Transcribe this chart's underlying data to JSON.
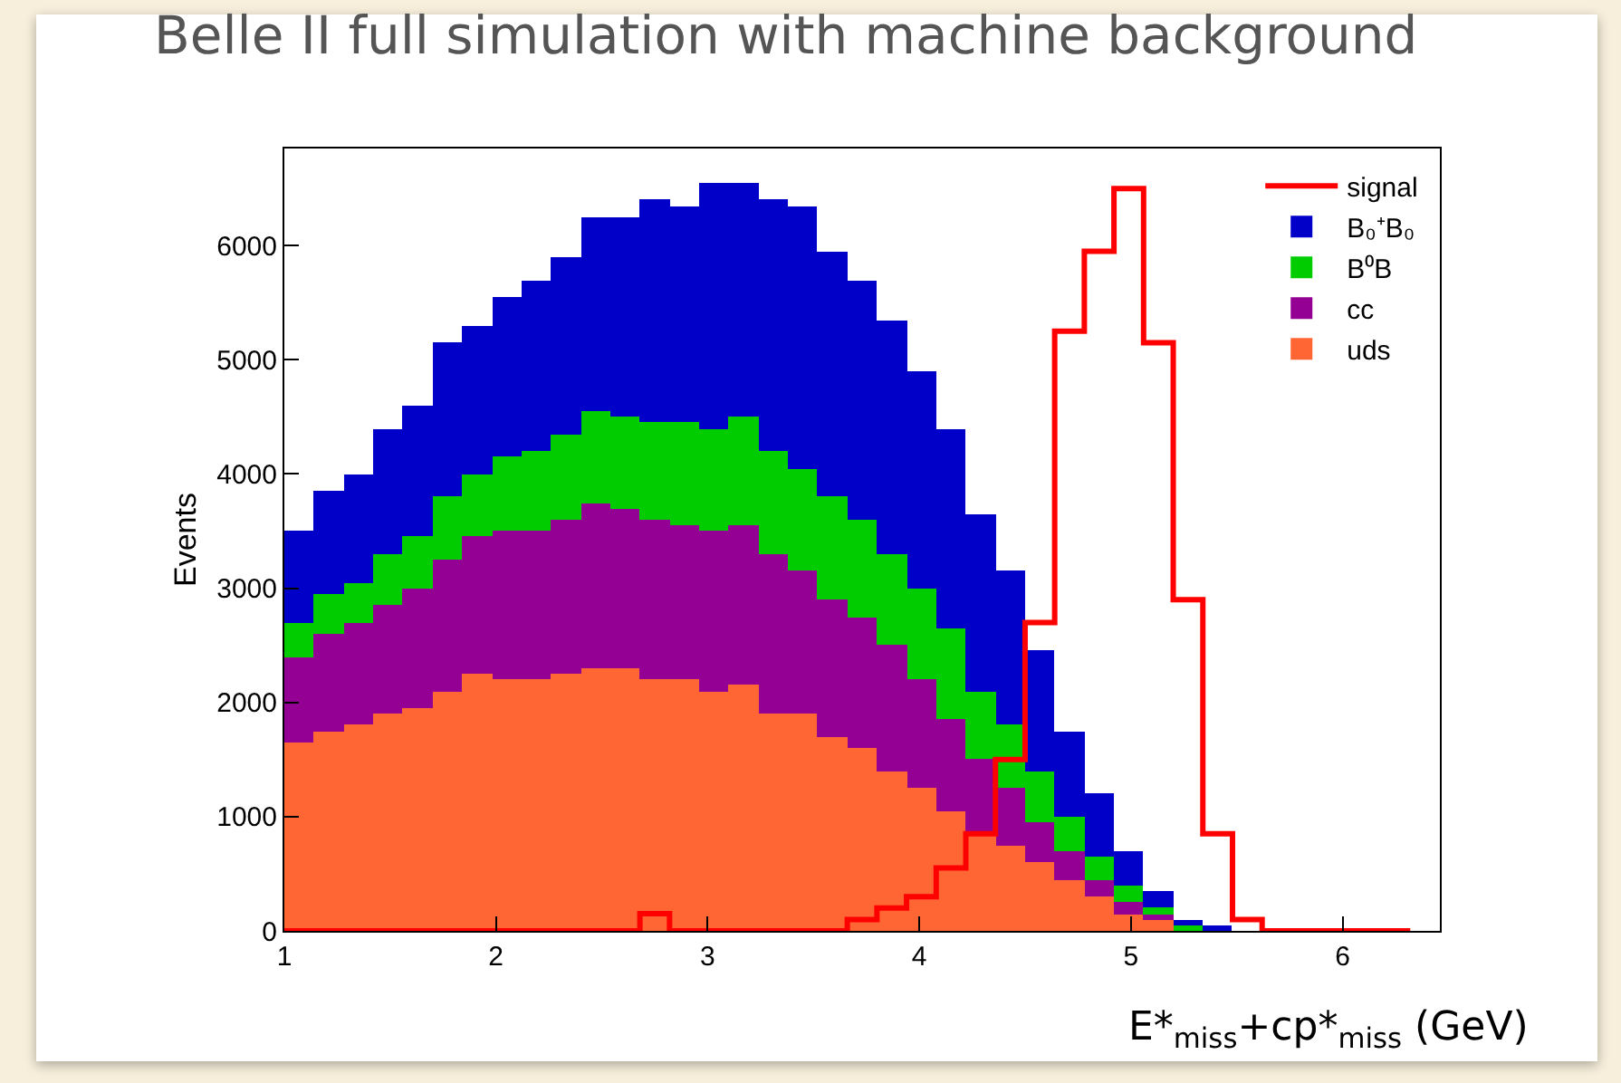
{
  "chart_data": {
    "type": "bar",
    "title": "Belle II full simulation with machine background",
    "xlabel": "E*$_{miss}$+cp*$_{miss}$ (GeV)",
    "ylabel": "Events",
    "x": [
      1.07,
      1.21,
      1.35,
      1.49,
      1.63,
      1.77,
      1.91,
      2.05,
      2.19,
      2.33,
      2.47,
      2.61,
      2.75,
      2.89,
      3.03,
      3.17,
      3.31,
      3.45,
      3.59,
      3.73,
      3.87,
      4.01,
      4.15,
      4.29,
      4.43,
      4.57,
      4.71,
      4.85,
      4.99,
      5.13,
      5.27,
      5.41
    ],
    "stacked": true,
    "series": [
      {
        "name": "uds",
        "color": "#ff6633",
        "values": [
          1650,
          1750,
          1800,
          1900,
          1950,
          2100,
          2250,
          2200,
          2200,
          2250,
          2300,
          2300,
          2200,
          2200,
          2100,
          2150,
          1900,
          1900,
          1700,
          1600,
          1400,
          1250,
          1050,
          850,
          750,
          600,
          450,
          300,
          150,
          100,
          0,
          0
        ]
      },
      {
        "name": "cc",
        "color": "#930093",
        "values": [
          750,
          850,
          900,
          950,
          1050,
          1150,
          1200,
          1300,
          1300,
          1350,
          1450,
          1400,
          1400,
          1350,
          1400,
          1400,
          1400,
          1250,
          1200,
          1150,
          1100,
          950,
          800,
          650,
          500,
          350,
          250,
          150,
          100,
          50,
          0,
          0
        ]
      },
      {
        "name": "B⁰B",
        "color": "#00cc00",
        "values": [
          300,
          350,
          350,
          450,
          450,
          550,
          550,
          650,
          700,
          750,
          800,
          800,
          850,
          900,
          900,
          950,
          900,
          900,
          900,
          850,
          800,
          800,
          800,
          600,
          550,
          450,
          300,
          200,
          150,
          50,
          50,
          0
        ]
      },
      {
        "name": "B₀⁺B₀",
        "color": "#0000c8",
        "values": [
          800,
          900,
          950,
          1100,
          1150,
          1350,
          1300,
          1400,
          1500,
          1550,
          1700,
          1750,
          1950,
          1900,
          2150,
          2050,
          2200,
          2300,
          2150,
          2100,
          2050,
          1900,
          1750,
          1550,
          1350,
          1050,
          750,
          550,
          300,
          150,
          50,
          50
        ]
      },
      {
        "name": "signal",
        "type": "step",
        "color": "#ff0000",
        "x": [
          1.0,
          1.14,
          1.28,
          1.42,
          1.56,
          1.7,
          1.84,
          1.98,
          2.12,
          2.26,
          2.4,
          2.54,
          2.68,
          2.82,
          2.96,
          3.1,
          3.24,
          3.38,
          3.52,
          3.66,
          3.8,
          3.94,
          4.08,
          4.22,
          4.36,
          4.5,
          4.64,
          4.78,
          4.92,
          5.06,
          5.2,
          5.34,
          5.48,
          5.62,
          5.76,
          5.9,
          6.04,
          6.18,
          6.32
        ],
        "values": [
          0,
          0,
          0,
          0,
          0,
          0,
          0,
          0,
          0,
          0,
          0,
          0,
          150,
          0,
          0,
          0,
          0,
          0,
          0,
          100,
          200,
          300,
          550,
          850,
          1500,
          2700,
          5250,
          5950,
          6500,
          5150,
          2900,
          850,
          100,
          0,
          0,
          0,
          0,
          0,
          0
        ]
      }
    ],
    "xlim": [
      1,
      6.46
    ],
    "xticks": [
      1,
      2,
      3,
      4,
      5,
      6
    ],
    "ylim": [
      0,
      6850
    ],
    "yticks": [
      0,
      1000,
      2000,
      3000,
      4000,
      5000,
      6000
    ],
    "grid": false,
    "legend": "top right"
  }
}
